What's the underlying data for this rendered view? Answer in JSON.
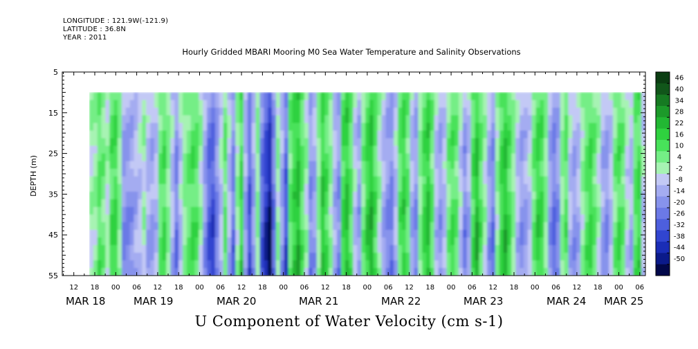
{
  "header": {
    "longitude": "LONGITUDE : 121.9W(-121.9)",
    "latitude": "LATITUDE : 36.8N",
    "year": "YEAR : 2011"
  },
  "title": "Hourly Gridded MBARI Mooring M0 Sea Water Temperature and Salinity Observations",
  "chart_data": {
    "type": "heatmap",
    "title": "U Component of Water Velocity (cm s-1)",
    "ylabel": "DEPTH (m)",
    "yticks": [
      "5",
      "15",
      "25",
      "35",
      "45",
      "55"
    ],
    "ylim": [
      5,
      55
    ],
    "y_inverted": true,
    "xticks_hour": [
      "12",
      "18",
      "00",
      "06",
      "12",
      "18",
      "00",
      "06",
      "12",
      "18",
      "00",
      "06",
      "12",
      "18",
      "00",
      "06",
      "12",
      "18",
      "00",
      "06",
      "12",
      "18",
      "00",
      "06",
      "12",
      "18",
      "00",
      "06"
    ],
    "xdates": [
      "MAR 18",
      "MAR 19",
      "MAR 20",
      "MAR 21",
      "MAR 22",
      "MAR 23",
      "MAR 24",
      "MAR 25"
    ],
    "data_depth_range": [
      10,
      55
    ],
    "colorbar": {
      "levels": [
        "46",
        "40",
        "34",
        "28",
        "22",
        "16",
        "10",
        "4",
        "-2",
        "-8",
        "-14",
        "-20",
        "-26",
        "-32",
        "-38",
        "-44",
        "-50"
      ],
      "colors": [
        "#0b3d12",
        "#11561a",
        "#167a22",
        "#1c9a2a",
        "#22b833",
        "#2fd23f",
        "#48e25a",
        "#74ee86",
        "#a7f3b3",
        "#c3c9f5",
        "#a4acf1",
        "#8793ec",
        "#6b79e6",
        "#4d5fde",
        "#3145d0",
        "#1a2db6",
        "#0b1a8a",
        "#02084a"
      ]
    },
    "velocity_columns": [
      2,
      4,
      12,
      8,
      1,
      14,
      16,
      6,
      -14,
      -14,
      -12,
      -8,
      -4,
      2,
      -8,
      -10,
      -6,
      10,
      14,
      6,
      -6,
      -18,
      -4,
      6,
      10,
      14,
      12,
      2,
      -12,
      -24,
      -28,
      -16,
      -4,
      10,
      -6,
      -20,
      4,
      16,
      -10,
      -26,
      -10,
      6,
      -22,
      -34,
      -42,
      -20,
      4,
      -12,
      -26,
      10,
      18,
      24,
      12,
      2,
      -14,
      -10,
      6,
      20,
      14,
      4,
      -8,
      -14,
      16,
      22,
      12,
      -4,
      -12,
      8,
      18,
      24,
      14,
      2,
      -8,
      -14,
      -18,
      -6,
      12,
      18,
      10,
      -8,
      -14,
      6,
      16,
      22,
      10,
      -6,
      -12,
      -6,
      8,
      14,
      10,
      -4,
      -16,
      -8,
      14,
      24,
      12,
      2,
      -12,
      -18,
      4,
      16,
      22,
      14,
      6,
      -6,
      -12,
      -10,
      -4,
      10,
      18,
      16,
      6,
      -12,
      -20,
      -14,
      6,
      12,
      -6,
      -12,
      -8,
      4,
      12,
      16,
      10,
      2,
      -10,
      -14,
      -6,
      8,
      14,
      10,
      -2,
      -8,
      12,
      16,
      -4
    ]
  }
}
